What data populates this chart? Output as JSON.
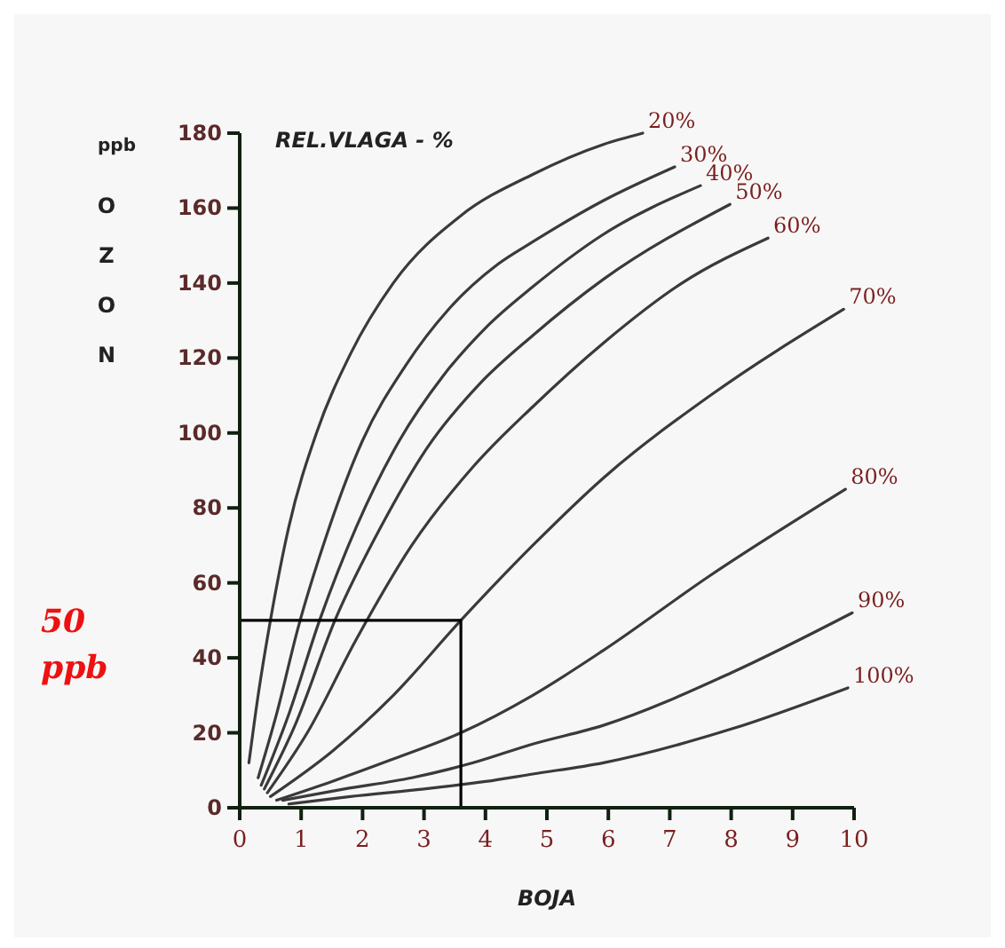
{
  "chart_data": {
    "type": "line",
    "legend_title": "REL.VLAGA - %",
    "xlabel": "BOJA",
    "ylabel": "ppb OZON",
    "xlim": [
      0,
      10
    ],
    "ylim": [
      0,
      180
    ],
    "xticks": [
      0,
      1,
      2,
      3,
      4,
      5,
      6,
      7,
      8,
      9,
      10
    ],
    "yticks": [
      0,
      20,
      40,
      60,
      80,
      100,
      120,
      140,
      160,
      180
    ],
    "grid": false,
    "marker": "none",
    "line_style": "solid",
    "annotations": [
      "50 ppb"
    ],
    "series": [
      {
        "name": "20%",
        "color": "#3a3a3a",
        "x": [
          0.15,
          0.3,
          0.5,
          0.8,
          1.25,
          1.8,
          2.5,
          3.6,
          4.77,
          5.92,
          6.56
        ],
        "values": [
          12,
          30,
          50,
          75,
          100,
          121,
          140,
          158,
          169,
          177,
          180
        ]
      },
      {
        "name": "30%",
        "color": "#3a3a3a",
        "x": [
          0.3,
          0.6,
          0.95,
          1.4,
          2.0,
          2.7,
          3.4,
          4.2,
          4.77,
          5.92,
          7.08
        ],
        "values": [
          8,
          25,
          48,
          72,
          98,
          118,
          133,
          145,
          151,
          162,
          171
        ]
      },
      {
        "name": "40%",
        "color": "#3a3a3a",
        "x": [
          0.35,
          0.8,
          1.3,
          1.9,
          2.6,
          3.3,
          4.0,
          4.77,
          5.92,
          7.5
        ],
        "values": [
          6,
          25,
          50,
          75,
          98,
          115,
          128,
          139,
          153,
          166
        ]
      },
      {
        "name": "50%",
        "color": "#3a3a3a",
        "x": [
          0.4,
          0.9,
          1.55,
          2.3,
          3.05,
          3.9,
          4.77,
          5.92,
          7.98
        ],
        "values": [
          5,
          22,
          50,
          75,
          96,
          113,
          126,
          141,
          161
        ]
      },
      {
        "name": "60%",
        "color": "#3a3a3a",
        "x": [
          0.45,
          1.1,
          1.9,
          2.8,
          3.8,
          4.77,
          5.92,
          7.2,
          8.6
        ],
        "values": [
          4,
          20,
          45,
          70,
          91,
          107,
          124,
          140,
          152
        ]
      },
      {
        "name": "70%",
        "color": "#3a3a3a",
        "x": [
          0.5,
          1.5,
          2.5,
          3.6,
          4.77,
          5.92,
          7.66,
          9.83
        ],
        "values": [
          3,
          15,
          30,
          50,
          70,
          88,
          110,
          133
        ]
      },
      {
        "name": "80%",
        "color": "#3a3a3a",
        "x": [
          0.6,
          1.5,
          2.5,
          3.6,
          4.77,
          5.92,
          7.66,
          9.86
        ],
        "values": [
          2,
          7,
          13,
          20,
          30,
          42,
          62,
          85
        ]
      },
      {
        "name": "90%",
        "color": "#3a3a3a",
        "x": [
          0.7,
          1.7,
          2.8,
          3.8,
          4.77,
          5.92,
          8.0,
          9.97
        ],
        "values": [
          2,
          5,
          8,
          12,
          17,
          22,
          36,
          52
        ]
      },
      {
        "name": "100%",
        "color": "#3a3a3a",
        "x": [
          0.8,
          1.8,
          3.0,
          4.0,
          4.77,
          5.92,
          8.0,
          9.9
        ],
        "values": [
          1,
          3,
          5,
          7,
          9,
          12,
          21,
          32
        ]
      },
      {
        "type": "step",
        "color": "#000000",
        "x": [
          0,
          3.6
        ],
        "values": [
          50,
          0
        ]
      }
    ]
  }
}
